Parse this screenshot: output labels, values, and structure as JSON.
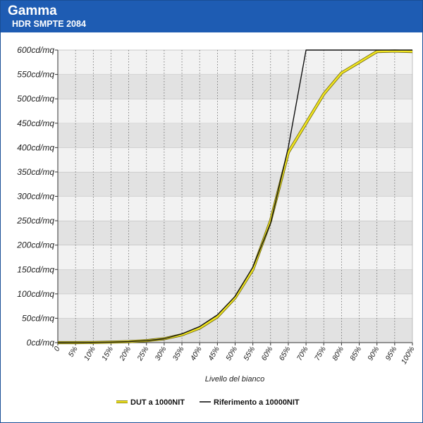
{
  "header": {
    "title": "Gamma",
    "subtitle": "HDR SMPTE 2084"
  },
  "colors": {
    "header_bg": "#1e5cb3",
    "band_light": "#f2f2f2",
    "band_dark": "#e2e2e2",
    "dut": "#f0e420",
    "reference": "#111111"
  },
  "chart_data": {
    "type": "line",
    "xlabel": "Livello del bianco",
    "ylabel": "",
    "x": [
      0,
      5,
      10,
      15,
      20,
      25,
      30,
      35,
      40,
      45,
      50,
      55,
      60,
      65,
      70,
      75,
      80,
      85,
      90,
      95,
      100
    ],
    "xticks": [
      "0",
      "5%",
      "10%",
      "15%",
      "20%",
      "25%",
      "30%",
      "35%",
      "40%",
      "45%",
      "50%",
      "55%",
      "60%",
      "65%",
      "70%",
      "75%",
      "80%",
      "85%",
      "90%",
      "95%",
      "100%"
    ],
    "yticks": [
      "0cd/mq",
      "50cd/mq",
      "100cd/mq",
      "150cd/mq",
      "200cd/mq",
      "250cd/mq",
      "300cd/mq",
      "350cd/mq",
      "400cd/mq",
      "450cd/mq",
      "500cd/mq",
      "550cd/mq",
      "600cd/mq"
    ],
    "ylim": [
      0,
      600
    ],
    "xlim": [
      0,
      100
    ],
    "grid": true,
    "legend_position": "bottom",
    "series": [
      {
        "name": "DUT a 1000NIT",
        "color": "#f0e420",
        "values": [
          0,
          0,
          0.3,
          1,
          2,
          4,
          8,
          16,
          30,
          53,
          92,
          150,
          250,
          390,
          450,
          510,
          553,
          575,
          597,
          598,
          597
        ]
      },
      {
        "name": "Riferimento a 10000NIT",
        "color": "#111111",
        "values": [
          0,
          0.2,
          0.4,
          1,
          2,
          4,
          8,
          18,
          33,
          57,
          95,
          155,
          245,
          400,
          600,
          600,
          600,
          600,
          600,
          600,
          600
        ]
      }
    ]
  }
}
